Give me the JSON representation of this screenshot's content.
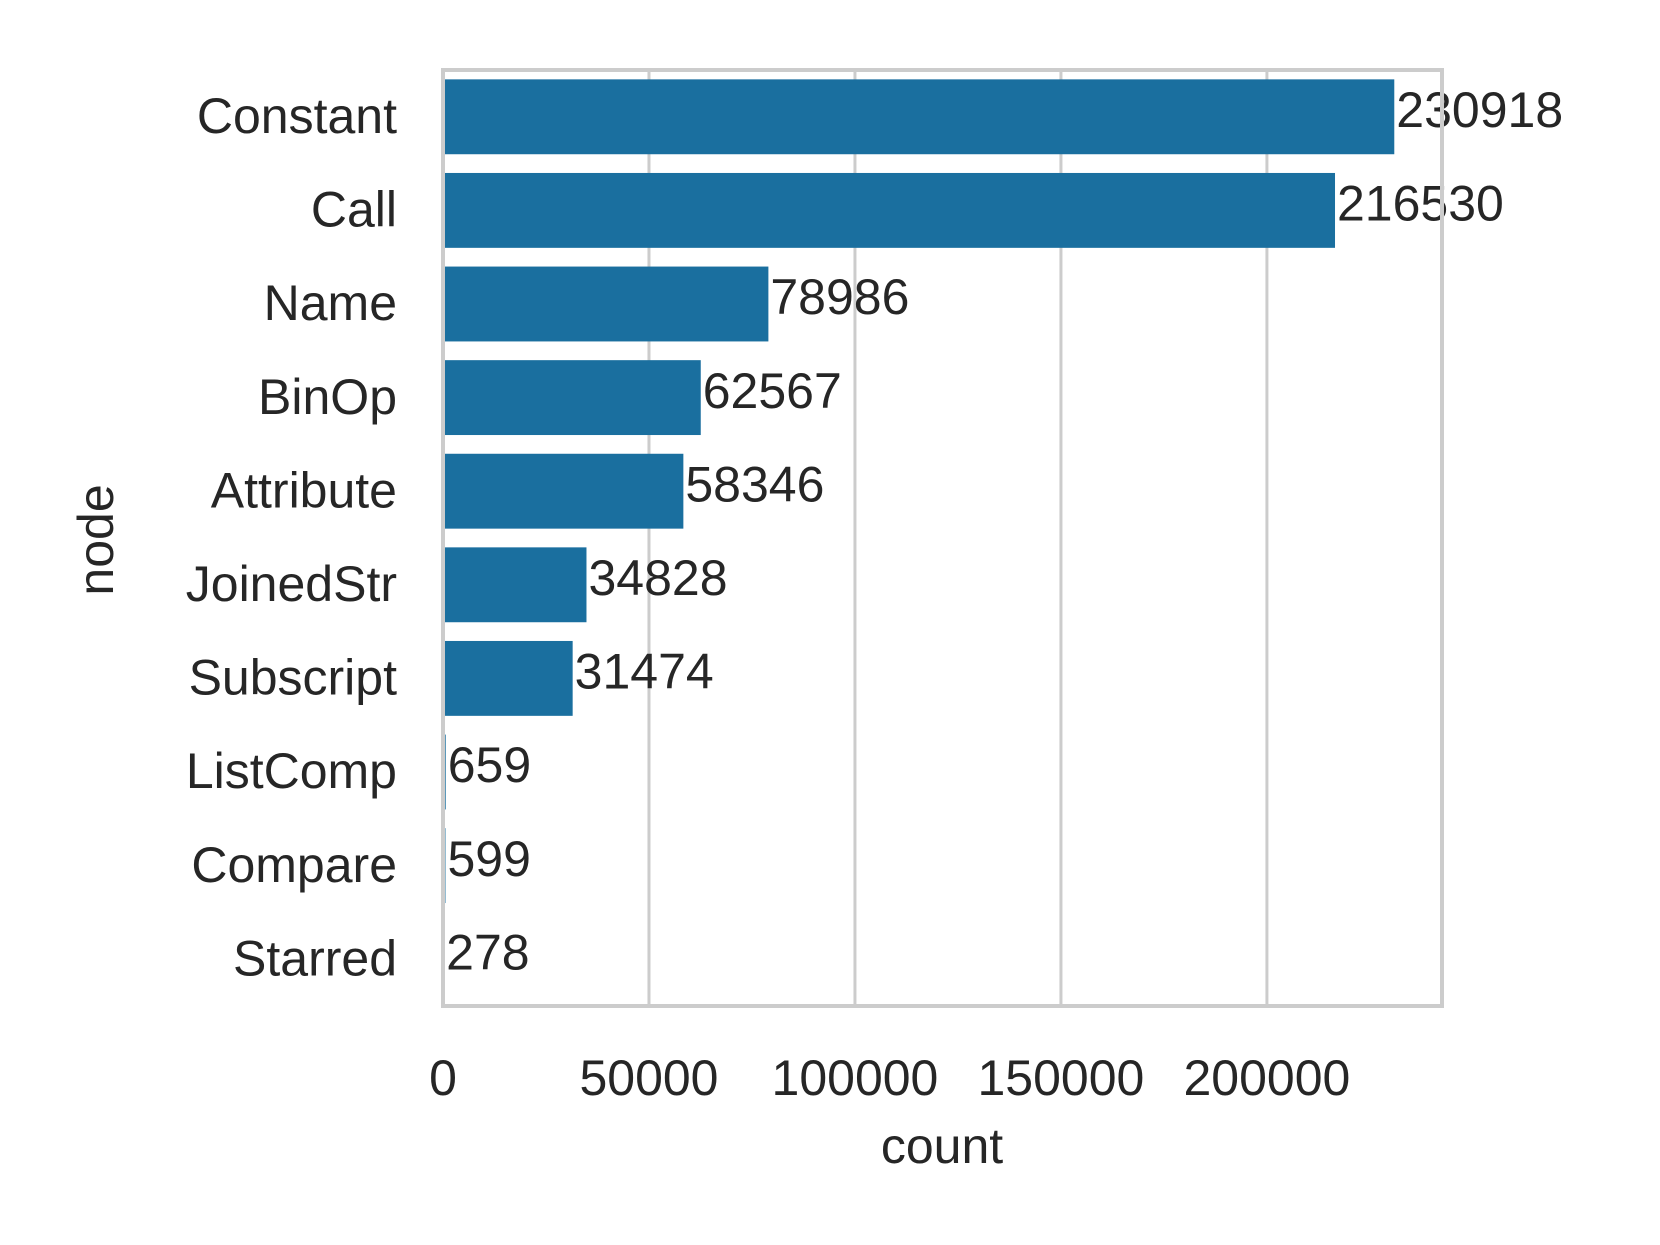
{
  "chart_data": {
    "type": "barh",
    "xlabel": "count",
    "ylabel": "node",
    "categories": [
      "Constant",
      "Call",
      "Name",
      "BinOp",
      "Attribute",
      "JoinedStr",
      "Subscript",
      "ListComp",
      "Compare",
      "Starred"
    ],
    "values": [
      230918,
      216530,
      78986,
      62567,
      58346,
      34828,
      31474,
      659,
      599,
      278
    ],
    "color": "#1a6f9f",
    "xlim": [
      0,
      242500
    ],
    "xticks": [
      0,
      50000,
      100000,
      150000,
      200000
    ],
    "grid": true
  }
}
